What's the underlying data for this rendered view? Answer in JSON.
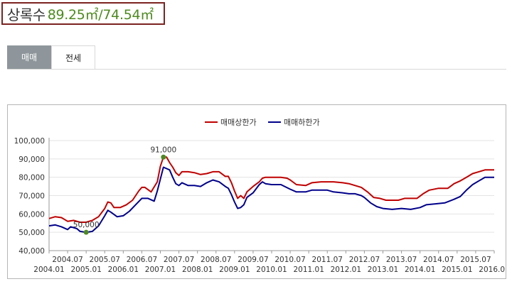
{
  "header": {
    "name": "상록수",
    "area": "89.25㎡/74.54㎡"
  },
  "tabs": [
    {
      "label": "매매",
      "active": true
    },
    {
      "label": "전세",
      "active": false
    }
  ],
  "colors": {
    "upper": "#c00000",
    "lower": "#00008b",
    "marker": "#4e8a23"
  },
  "chart_data": {
    "type": "line",
    "title": "",
    "xlabel": "",
    "ylabel": "",
    "ylim": [
      40000,
      100000
    ],
    "yticks": [
      "40,000",
      "50,000",
      "60,000",
      "70,000",
      "80,000",
      "90,000",
      "100,000"
    ],
    "xtick_top": [
      "2004.07",
      "2005.07",
      "2006.07",
      "2007.07",
      "2008.07",
      "2009.07",
      "2010.07",
      "2011.07",
      "2012.07",
      "2013.07",
      "2014.07",
      "2015.07"
    ],
    "xtick_bottom": [
      "2004.01",
      "2005.01",
      "2006.01",
      "2007.01",
      "2008.01",
      "2009.01",
      "2010.01",
      "2011.01",
      "2012.01",
      "2013.01",
      "2014.01",
      "2015.01",
      "2016.01"
    ],
    "legend_position": "top-center",
    "grid": true,
    "series": [
      {
        "name": "매매상한가",
        "points": [
          [
            "2004.01",
            57500
          ],
          [
            "2004.03",
            58500
          ],
          [
            "2004.05",
            58000
          ],
          [
            "2004.07",
            56000
          ],
          [
            "2004.09",
            56500
          ],
          [
            "2004.11",
            55500
          ],
          [
            "2005.01",
            55500
          ],
          [
            "2005.03",
            56500
          ],
          [
            "2005.05",
            58500
          ],
          [
            "2005.07",
            63000
          ],
          [
            "2005.08",
            66500
          ],
          [
            "2005.09",
            66000
          ],
          [
            "2005.10",
            63500
          ],
          [
            "2005.12",
            63500
          ],
          [
            "2006.02",
            65000
          ],
          [
            "2006.04",
            67500
          ],
          [
            "2006.06",
            72500
          ],
          [
            "2006.07",
            74500
          ],
          [
            "2006.08",
            74500
          ],
          [
            "2006.10",
            72000
          ],
          [
            "2006.12",
            77500
          ],
          [
            "2007.01",
            86000
          ],
          [
            "2007.02",
            91000
          ],
          [
            "2007.03",
            91000
          ],
          [
            "2007.04",
            88000
          ],
          [
            "2007.05",
            85500
          ],
          [
            "2007.06",
            82500
          ],
          [
            "2007.07",
            81000
          ],
          [
            "2007.08",
            83000
          ],
          [
            "2007.10",
            83000
          ],
          [
            "2007.12",
            82500
          ],
          [
            "2008.02",
            81500
          ],
          [
            "2008.04",
            82000
          ],
          [
            "2008.06",
            83000
          ],
          [
            "2008.08",
            83000
          ],
          [
            "2008.10",
            80500
          ],
          [
            "2008.11",
            80500
          ],
          [
            "2008.12",
            77000
          ],
          [
            "2009.01",
            72500
          ],
          [
            "2009.02",
            68500
          ],
          [
            "2009.03",
            70000
          ],
          [
            "2009.04",
            68500
          ],
          [
            "2009.05",
            72000
          ],
          [
            "2009.07",
            75000
          ],
          [
            "2009.09",
            77500
          ],
          [
            "2009.10",
            79500
          ],
          [
            "2009.11",
            80000
          ],
          [
            "2010.01",
            80000
          ],
          [
            "2010.04",
            80000
          ],
          [
            "2010.06",
            79500
          ],
          [
            "2010.07",
            78500
          ],
          [
            "2010.09",
            76000
          ],
          [
            "2010.12",
            75500
          ],
          [
            "2011.02",
            77000
          ],
          [
            "2011.05",
            77500
          ],
          [
            "2011.09",
            77500
          ],
          [
            "2011.12",
            77000
          ],
          [
            "2012.02",
            76500
          ],
          [
            "2012.04",
            75500
          ],
          [
            "2012.06",
            74500
          ],
          [
            "2012.08",
            72000
          ],
          [
            "2012.10",
            69000
          ],
          [
            "2012.12",
            68500
          ],
          [
            "2013.02",
            67500
          ],
          [
            "2013.06",
            67500
          ],
          [
            "2013.08",
            68500
          ],
          [
            "2013.12",
            68500
          ],
          [
            "2014.02",
            71000
          ],
          [
            "2014.04",
            73000
          ],
          [
            "2014.07",
            74000
          ],
          [
            "2014.10",
            74000
          ],
          [
            "2014.12",
            76500
          ],
          [
            "2015.02",
            78000
          ],
          [
            "2015.04",
            80000
          ],
          [
            "2015.06",
            82000
          ],
          [
            "2015.08",
            83000
          ],
          [
            "2015.10",
            84000
          ],
          [
            "2016.01",
            84000
          ]
        ]
      },
      {
        "name": "매매하한가",
        "points": [
          [
            "2004.01",
            53500
          ],
          [
            "2004.03",
            54000
          ],
          [
            "2004.05",
            53000
          ],
          [
            "2004.07",
            51500
          ],
          [
            "2004.08",
            53000
          ],
          [
            "2004.10",
            52000
          ],
          [
            "2004.11",
            50500
          ],
          [
            "2005.01",
            50000
          ],
          [
            "2005.03",
            50500
          ],
          [
            "2005.05",
            53500
          ],
          [
            "2005.07",
            59000
          ],
          [
            "2005.08",
            62000
          ],
          [
            "2005.09",
            61000
          ],
          [
            "2005.11",
            58500
          ],
          [
            "2006.01",
            59000
          ],
          [
            "2006.03",
            61500
          ],
          [
            "2006.05",
            65000
          ],
          [
            "2006.07",
            68500
          ],
          [
            "2006.09",
            68500
          ],
          [
            "2006.11",
            67000
          ],
          [
            "2006.12",
            72500
          ],
          [
            "2007.01",
            79000
          ],
          [
            "2007.02",
            85500
          ],
          [
            "2007.04",
            84000
          ],
          [
            "2007.05",
            80000
          ],
          [
            "2007.06",
            76500
          ],
          [
            "2007.07",
            75500
          ],
          [
            "2007.08",
            77000
          ],
          [
            "2007.10",
            75500
          ],
          [
            "2007.12",
            75500
          ],
          [
            "2008.02",
            75000
          ],
          [
            "2008.04",
            77000
          ],
          [
            "2008.06",
            78500
          ],
          [
            "2008.08",
            77500
          ],
          [
            "2008.10",
            75000
          ],
          [
            "2008.11",
            74000
          ],
          [
            "2008.12",
            70500
          ],
          [
            "2009.01",
            66500
          ],
          [
            "2009.02",
            63000
          ],
          [
            "2009.03",
            63500
          ],
          [
            "2009.04",
            65000
          ],
          [
            "2009.05",
            69000
          ],
          [
            "2009.07",
            71500
          ],
          [
            "2009.09",
            76000
          ],
          [
            "2009.10",
            77500
          ],
          [
            "2009.11",
            76500
          ],
          [
            "2010.01",
            76000
          ],
          [
            "2010.04",
            76000
          ],
          [
            "2010.07",
            73500
          ],
          [
            "2010.09",
            72000
          ],
          [
            "2010.12",
            72000
          ],
          [
            "2011.02",
            73000
          ],
          [
            "2011.05",
            73000
          ],
          [
            "2011.07",
            73000
          ],
          [
            "2011.09",
            72000
          ],
          [
            "2011.12",
            71500
          ],
          [
            "2012.02",
            71000
          ],
          [
            "2012.04",
            71000
          ],
          [
            "2012.06",
            70000
          ],
          [
            "2012.07",
            69000
          ],
          [
            "2012.09",
            66000
          ],
          [
            "2012.11",
            64000
          ],
          [
            "2013.01",
            63000
          ],
          [
            "2013.04",
            62500
          ],
          [
            "2013.07",
            63000
          ],
          [
            "2013.10",
            62500
          ],
          [
            "2014.01",
            63500
          ],
          [
            "2014.03",
            65000
          ],
          [
            "2014.06",
            65500
          ],
          [
            "2014.09",
            66000
          ],
          [
            "2014.12",
            68000
          ],
          [
            "2015.02",
            69500
          ],
          [
            "2015.04",
            73000
          ],
          [
            "2015.06",
            76000
          ],
          [
            "2015.08",
            78000
          ],
          [
            "2015.10",
            80000
          ],
          [
            "2016.01",
            80000
          ]
        ]
      }
    ],
    "annotations": [
      {
        "label": "91,000",
        "x": "2007.02",
        "y": 91000
      },
      {
        "label": "50,000",
        "x": "2005.01",
        "y": 50000
      }
    ]
  }
}
